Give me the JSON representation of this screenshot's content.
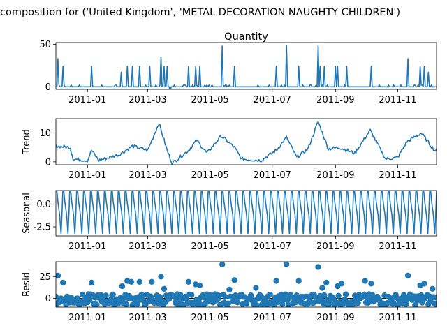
{
  "figure": {
    "suptitle": "composition for ('United Kingdom', 'METAL DECORATION NAUGHTY CHILDREN')",
    "x_tick_labels": [
      "2011-01",
      "2011-03",
      "2011-05",
      "2011-07",
      "2011-09",
      "2011-11"
    ]
  },
  "chart_data": [
    {
      "type": "line",
      "title": "Quantity",
      "ylabel": "",
      "ylim": [
        -3,
        52
      ],
      "yticks": [
        0,
        50
      ],
      "spikes": [
        {
          "x": "2010-12-03",
          "y": 33
        },
        {
          "x": "2010-12-08",
          "y": 24
        },
        {
          "x": "2011-01-05",
          "y": 24
        },
        {
          "x": "2011-02-03",
          "y": 17
        },
        {
          "x": "2011-02-09",
          "y": 24
        },
        {
          "x": "2011-02-14",
          "y": 24
        },
        {
          "x": "2011-02-21",
          "y": 24
        },
        {
          "x": "2011-03-03",
          "y": 24
        },
        {
          "x": "2011-03-14",
          "y": 35
        },
        {
          "x": "2011-03-17",
          "y": 24
        },
        {
          "x": "2011-03-20",
          "y": 24
        },
        {
          "x": "2011-04-10",
          "y": 24
        },
        {
          "x": "2011-04-17",
          "y": 24
        },
        {
          "x": "2011-04-21",
          "y": 24
        },
        {
          "x": "2011-05-13",
          "y": 48
        },
        {
          "x": "2011-05-25",
          "y": 24
        },
        {
          "x": "2011-07-05",
          "y": 24
        },
        {
          "x": "2011-07-15",
          "y": 49
        },
        {
          "x": "2011-07-27",
          "y": 24
        },
        {
          "x": "2011-08-15",
          "y": 48
        },
        {
          "x": "2011-08-17",
          "y": 24
        },
        {
          "x": "2011-08-21",
          "y": 24
        },
        {
          "x": "2011-09-01",
          "y": 24
        },
        {
          "x": "2011-09-03",
          "y": 24
        },
        {
          "x": "2011-09-12",
          "y": 24
        },
        {
          "x": "2011-10-06",
          "y": 24
        },
        {
          "x": "2011-11-11",
          "y": 33
        },
        {
          "x": "2011-11-23",
          "y": 24
        },
        {
          "x": "2011-11-27",
          "y": 24
        },
        {
          "x": "2011-12-01",
          "y": 17
        }
      ],
      "dips": [
        {
          "x": "2011-03-23",
          "y": -6
        }
      ]
    },
    {
      "type": "line",
      "title": "",
      "ylabel": "Trend",
      "ylim": [
        -1,
        15
      ],
      "yticks": [
        0,
        10
      ],
      "key_points": [
        {
          "x": "2010-12-01",
          "y": 5.5
        },
        {
          "x": "2010-12-15",
          "y": 5
        },
        {
          "x": "2010-12-18",
          "y": 1
        },
        {
          "x": "2011-01-01",
          "y": 0.5
        },
        {
          "x": "2011-01-05",
          "y": 4
        },
        {
          "x": "2011-01-12",
          "y": 0.5
        },
        {
          "x": "2011-02-01",
          "y": 2.5
        },
        {
          "x": "2011-02-14",
          "y": 5.5
        },
        {
          "x": "2011-03-01",
          "y": 4
        },
        {
          "x": "2011-03-12",
          "y": 13.5
        },
        {
          "x": "2011-03-20",
          "y": 4
        },
        {
          "x": "2011-03-25",
          "y": -0.5
        },
        {
          "x": "2011-04-10",
          "y": 4
        },
        {
          "x": "2011-04-18",
          "y": 7.5
        },
        {
          "x": "2011-04-28",
          "y": 3
        },
        {
          "x": "2011-05-12",
          "y": 9
        },
        {
          "x": "2011-05-25",
          "y": 5
        },
        {
          "x": "2011-06-01",
          "y": 1
        },
        {
          "x": "2011-06-20",
          "y": 0.5
        },
        {
          "x": "2011-07-05",
          "y": 4
        },
        {
          "x": "2011-07-15",
          "y": 8.5
        },
        {
          "x": "2011-07-25",
          "y": 1.5
        },
        {
          "x": "2011-08-05",
          "y": 4.5
        },
        {
          "x": "2011-08-15",
          "y": 14
        },
        {
          "x": "2011-08-25",
          "y": 4.5
        },
        {
          "x": "2011-09-05",
          "y": 5
        },
        {
          "x": "2011-09-20",
          "y": 3
        },
        {
          "x": "2011-10-05",
          "y": 11
        },
        {
          "x": "2011-10-20",
          "y": 1
        },
        {
          "x": "2011-11-01",
          "y": 1.5
        },
        {
          "x": "2011-11-10",
          "y": 7
        },
        {
          "x": "2011-11-24",
          "y": 10
        },
        {
          "x": "2011-12-07",
          "y": 4
        }
      ]
    },
    {
      "type": "line",
      "title": "",
      "ylabel": "Seasonal",
      "ylim": [
        -3.5,
        1.5
      ],
      "yticks": [
        0.0,
        -2.5
      ],
      "amplitude_range": [
        -3.3,
        1.4
      ],
      "cycle_count": 55
    },
    {
      "type": "scatter",
      "title": "",
      "ylabel": "Resid",
      "ylim": [
        -10,
        42
      ],
      "yticks": [
        0,
        25
      ],
      "outliers": [
        {
          "x": "2010-12-03",
          "y": 26
        },
        {
          "x": "2010-12-08",
          "y": 18
        },
        {
          "x": "2011-01-05",
          "y": 18
        },
        {
          "x": "2011-02-04",
          "y": 14
        },
        {
          "x": "2011-02-09",
          "y": 20
        },
        {
          "x": "2011-02-13",
          "y": 19
        },
        {
          "x": "2011-02-21",
          "y": 19
        },
        {
          "x": "2011-03-05",
          "y": 19
        },
        {
          "x": "2011-03-14",
          "y": 25
        },
        {
          "x": "2011-03-17",
          "y": 11
        },
        {
          "x": "2011-04-10",
          "y": 19
        },
        {
          "x": "2011-04-17",
          "y": 16
        },
        {
          "x": "2011-04-21",
          "y": 15
        },
        {
          "x": "2011-05-13",
          "y": 39
        },
        {
          "x": "2011-05-20",
          "y": 10
        },
        {
          "x": "2011-05-25",
          "y": 21
        },
        {
          "x": "2011-06-15",
          "y": 12
        },
        {
          "x": "2011-07-05",
          "y": 20
        },
        {
          "x": "2011-07-15",
          "y": 39
        },
        {
          "x": "2011-07-27",
          "y": 20
        },
        {
          "x": "2011-08-15",
          "y": 36
        },
        {
          "x": "2011-08-19",
          "y": 12
        },
        {
          "x": "2011-08-23",
          "y": 18
        },
        {
          "x": "2011-09-03",
          "y": 14
        },
        {
          "x": "2011-09-07",
          "y": 17
        },
        {
          "x": "2011-09-30",
          "y": 20
        },
        {
          "x": "2011-10-06",
          "y": 17
        },
        {
          "x": "2011-11-11",
          "y": 26
        },
        {
          "x": "2011-11-23",
          "y": 15
        },
        {
          "x": "2011-11-27",
          "y": 17
        },
        {
          "x": "2011-12-05",
          "y": 11
        }
      ],
      "baseline_range": [
        -8,
        5
      ]
    }
  ]
}
